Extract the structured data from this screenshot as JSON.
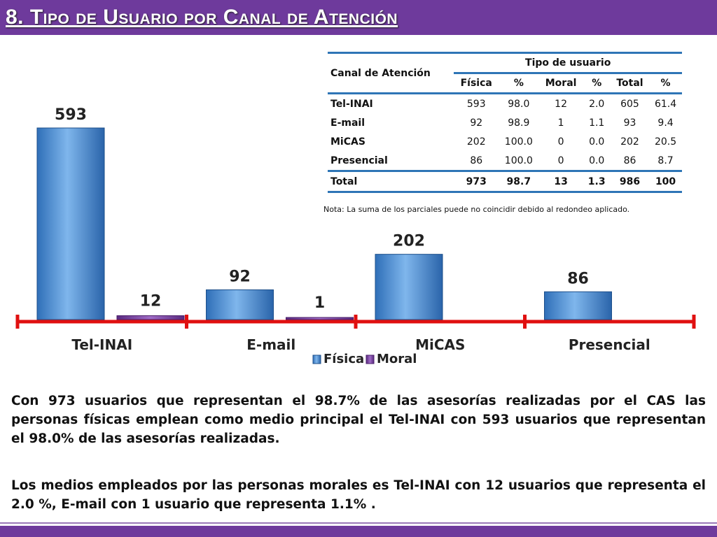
{
  "header": {
    "title": "8. Tipo de Usuario por Canal de Atención"
  },
  "table": {
    "channel_header": "Canal de Atención",
    "group_header": "Tipo de usuario",
    "columns": [
      "Física",
      "%",
      "Moral",
      "%",
      "Total",
      "%"
    ],
    "rows": [
      {
        "label": "Tel-INAI",
        "values": [
          "593",
          "98.0",
          "12",
          "2.0",
          "605",
          "61.4"
        ]
      },
      {
        "label": "E-mail",
        "values": [
          "92",
          "98.9",
          "1",
          "1.1",
          "93",
          "9.4"
        ]
      },
      {
        "label": "MiCAS",
        "values": [
          "202",
          "100.0",
          "0",
          "0.0",
          "202",
          "20.5"
        ]
      },
      {
        "label": "Presencial",
        "values": [
          "86",
          "100.0",
          "0",
          "0.0",
          "86",
          "8.7"
        ]
      }
    ],
    "total_row": {
      "label": "Total",
      "values": [
        "973",
        "98.7",
        "13",
        "1.3",
        "986",
        "100"
      ]
    },
    "note": "Nota: La suma de los parciales puede no coincidir debido al redondeo aplicado."
  },
  "chart_data": {
    "type": "bar",
    "title": "",
    "xlabel": "",
    "ylabel": "",
    "categories": [
      "Tel-INAI",
      "E-mail",
      "MiCAS",
      "Presencial"
    ],
    "series": [
      {
        "name": "Física",
        "values": [
          593,
          92,
          202,
          86
        ],
        "labels": [
          "593",
          "92",
          "202",
          "86"
        ],
        "color": "#4a90d9"
      },
      {
        "name": "Moral",
        "values": [
          12,
          1,
          0,
          0
        ],
        "labels": [
          "12",
          "1",
          "",
          ""
        ],
        "color": "#7a3fa0"
      }
    ],
    "ylim": [
      0,
      600
    ],
    "legend": "bottom-center",
    "grid": false,
    "axis_color": "#e01010"
  },
  "text": {
    "paragraph1": "Con 973 usuarios que representan el 98.7% de las asesorías realizadas por el CAS las personas físicas emplean como medio principal el Tel-INAI con 593 usuarios que representan el 98.0% de las asesorías realizadas.",
    "paragraph2": "Los medios empleados por las personas morales es Tel-INAI con 12 usuarios que representa el 2.0 %,  E-mail con 1 usuario que representa 1.1% ."
  }
}
